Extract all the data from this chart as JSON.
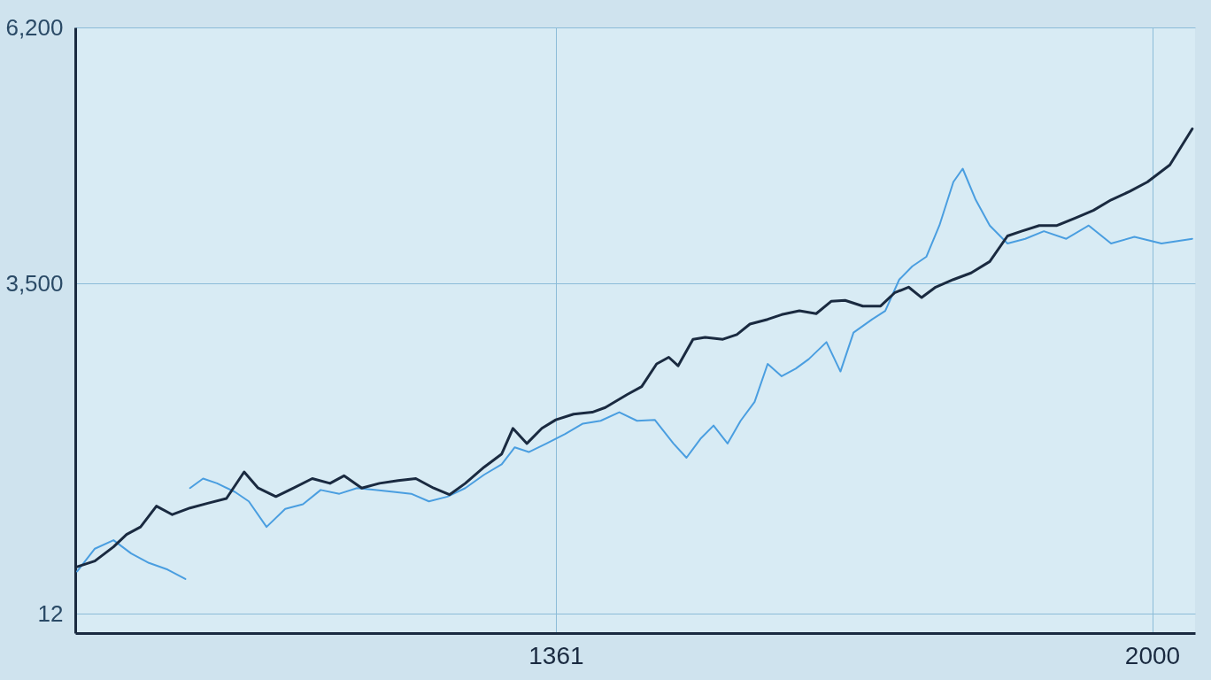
{
  "chart_data": {
    "type": "line",
    "xlim": [
      846,
      2046
    ],
    "xticks": [
      1361,
      2000
    ],
    "ylim": [
      -190,
      6200
    ],
    "yticks": [
      {
        "value": 6200,
        "label": "6,200"
      },
      {
        "value": 3500,
        "label": "3,500"
      },
      12
    ],
    "grid": true,
    "marker": "none",
    "line_style": "solid",
    "series": [
      {
        "color": "#4a9ee0",
        "x": [
          848,
          867,
          887,
          906,
          925,
          945,
          964,
          966,
          969,
          983,
          998,
          1017,
          1032,
          1051,
          1071,
          1090,
          1109,
          1129,
          1148,
          1167,
          1187,
          1206,
          1225,
          1245,
          1264,
          1284,
          1303,
          1317,
          1332,
          1351,
          1371,
          1390,
          1409,
          1429,
          1448,
          1467,
          1487,
          1501,
          1516,
          1530,
          1545,
          1559,
          1574,
          1588,
          1603,
          1618,
          1632,
          1651,
          1666,
          1680,
          1700,
          1714,
          1729,
          1743,
          1758,
          1772,
          1787,
          1797,
          1811,
          1826,
          1845,
          1864,
          1884,
          1908,
          1932,
          1956,
          1981,
          2010,
          2043
        ],
        "values": [
          460,
          700,
          790,
          650,
          550,
          480,
          380,
          null,
          1340,
          1440,
          1390,
          1300,
          1200,
          930,
          1120,
          1170,
          1320,
          1280,
          1340,
          1320,
          1300,
          1280,
          1200,
          1250,
          1340,
          1480,
          1590,
          1770,
          1720,
          1810,
          1910,
          2020,
          2050,
          2140,
          2050,
          2060,
          1810,
          1660,
          1860,
          2000,
          1810,
          2050,
          2250,
          2650,
          2520,
          2600,
          2700,
          2880,
          2570,
          2980,
          3120,
          3210,
          3540,
          3680,
          3780,
          4110,
          4570,
          4710,
          4380,
          4110,
          3920,
          3970,
          4050,
          3970,
          4110,
          3920,
          3990,
          3920,
          3970
        ]
      },
      {
        "color": "#1a2a40",
        "x": [
          848,
          867,
          887,
          901,
          916,
          933,
          950,
          969,
          988,
          1008,
          1027,
          1042,
          1061,
          1080,
          1100,
          1119,
          1134,
          1153,
          1172,
          1192,
          1211,
          1230,
          1247,
          1264,
          1284,
          1303,
          1315,
          1330,
          1346,
          1361,
          1380,
          1400,
          1414,
          1438,
          1453,
          1469,
          1482,
          1492,
          1508,
          1521,
          1540,
          1555,
          1569,
          1588,
          1603,
          1622,
          1640,
          1656,
          1671,
          1690,
          1709,
          1724,
          1739,
          1753,
          1768,
          1787,
          1806,
          1826,
          1845,
          1860,
          1879,
          1898,
          1918,
          1937,
          1956,
          1976,
          1995,
          2019,
          2043
        ],
        "values": [
          510,
          570,
          720,
          850,
          930,
          1150,
          1060,
          1130,
          1180,
          1230,
          1510,
          1340,
          1250,
          1340,
          1440,
          1390,
          1470,
          1340,
          1390,
          1420,
          1440,
          1340,
          1270,
          1390,
          1560,
          1700,
          1970,
          1810,
          1970,
          2060,
          2120,
          2140,
          2190,
          2330,
          2410,
          2650,
          2720,
          2630,
          2910,
          2930,
          2910,
          2960,
          3070,
          3120,
          3170,
          3210,
          3180,
          3310,
          3320,
          3260,
          3260,
          3400,
          3460,
          3350,
          3460,
          3540,
          3610,
          3730,
          4000,
          4050,
          4110,
          4110,
          4190,
          4270,
          4380,
          4470,
          4570,
          4750,
          5130
        ]
      }
    ]
  }
}
